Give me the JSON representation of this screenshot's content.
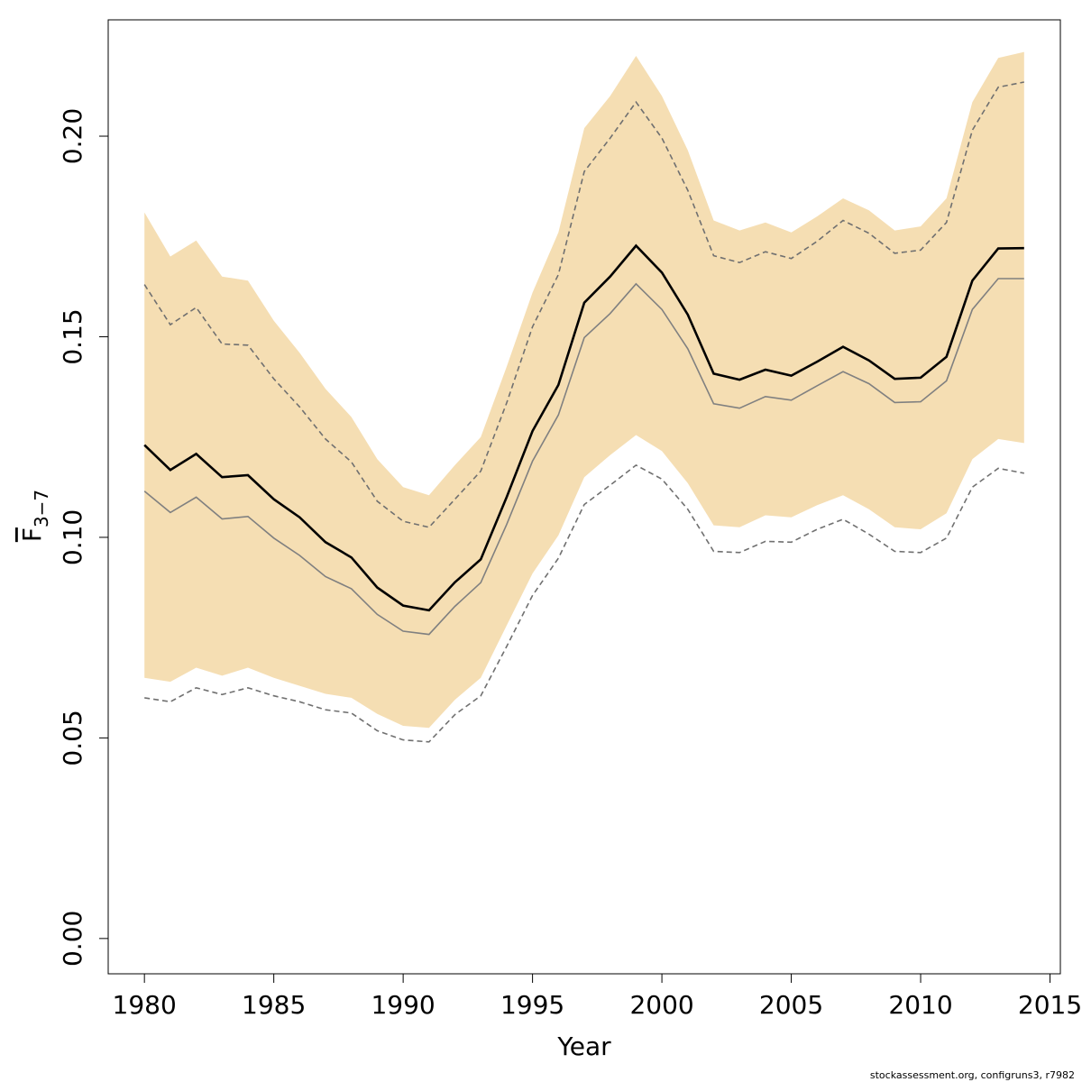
{
  "chart_data": {
    "type": "line",
    "title": "",
    "xlabel": "Year",
    "ylabel_main": "F",
    "ylabel_sub": "3−7",
    "xlim": [
      1978.6,
      2015.4
    ],
    "ylim": [
      -0.0088,
      0.229
    ],
    "xticks": [
      1980,
      1985,
      1990,
      1995,
      2000,
      2005,
      2010,
      2015
    ],
    "yticks": [
      0.0,
      0.05,
      0.1,
      0.15,
      0.2
    ],
    "xtick_labels": [
      "1980",
      "1985",
      "1990",
      "1995",
      "2000",
      "2005",
      "2010",
      "2015"
    ],
    "ytick_labels": [
      "0.00",
      "0.05",
      "0.10",
      "0.15",
      "0.20"
    ],
    "years": [
      1980,
      1981,
      1982,
      1983,
      1984,
      1985,
      1986,
      1987,
      1988,
      1989,
      1990,
      1991,
      1992,
      1993,
      1994,
      1995,
      1996,
      1997,
      1998,
      1999,
      2000,
      2001,
      2002,
      2003,
      2004,
      2005,
      2006,
      2007,
      2008,
      2009,
      2010,
      2011,
      2012,
      2013,
      2014
    ],
    "band_upper": [
      0.181,
      0.17,
      0.174,
      0.165,
      0.164,
      0.154,
      0.146,
      0.137,
      0.13,
      0.1195,
      0.1125,
      0.1105,
      0.118,
      0.125,
      0.1425,
      0.161,
      0.176,
      0.202,
      0.21,
      0.22,
      0.21,
      0.1965,
      0.179,
      0.1765,
      0.1785,
      0.176,
      0.18,
      0.1845,
      0.1815,
      0.1765,
      0.1775,
      0.1845,
      0.2085,
      0.2195,
      0.221
    ],
    "band_lower": [
      0.065,
      0.064,
      0.0675,
      0.0655,
      0.0675,
      0.065,
      0.063,
      0.061,
      0.06,
      0.056,
      0.053,
      0.0525,
      0.0595,
      0.065,
      0.078,
      0.091,
      0.1005,
      0.115,
      0.1205,
      0.1255,
      0.1215,
      0.1135,
      0.103,
      0.1025,
      0.1055,
      0.105,
      0.108,
      0.1105,
      0.107,
      0.1025,
      0.102,
      0.106,
      0.1195,
      0.1245,
      0.1235
    ],
    "series": [
      {
        "name": "estimate",
        "style": "solid-black",
        "color": "#000000",
        "values": [
          0.123,
          0.1168,
          0.1208,
          0.115,
          0.1155,
          0.1095,
          0.105,
          0.0988,
          0.095,
          0.0875,
          0.083,
          0.0818,
          0.0888,
          0.0945,
          0.11,
          0.1265,
          0.138,
          0.1585,
          0.165,
          0.1727,
          0.166,
          0.1555,
          0.1408,
          0.1393,
          0.1418,
          0.1403,
          0.1438,
          0.1475,
          0.1441,
          0.1395,
          0.1398,
          0.145,
          0.164,
          0.172,
          0.1721
        ]
      },
      {
        "name": "comparison",
        "style": "solid-grey",
        "color": "#808080",
        "values": [
          0.1115,
          0.1062,
          0.11,
          0.1046,
          0.1052,
          0.0998,
          0.0955,
          0.0902,
          0.0872,
          0.0808,
          0.0766,
          0.0758,
          0.0828,
          0.0887,
          0.1032,
          0.119,
          0.1305,
          0.1498,
          0.1558,
          0.1632,
          0.1568,
          0.147,
          0.1333,
          0.1322,
          0.1351,
          0.1342,
          0.1378,
          0.1413,
          0.1383,
          0.1336,
          0.1338,
          0.139,
          0.1568,
          0.1645,
          0.1645
        ]
      },
      {
        "name": "comparison-upper",
        "style": "dashed-grey",
        "color": "#707070",
        "values": [
          0.163,
          0.153,
          0.1573,
          0.1482,
          0.1479,
          0.1395,
          0.1325,
          0.1245,
          0.1188,
          0.109,
          0.104,
          0.1025,
          0.1095,
          0.1165,
          0.1335,
          0.1525,
          0.1655,
          0.1912,
          0.1995,
          0.2085,
          0.1995,
          0.1865,
          0.1702,
          0.1685,
          0.1712,
          0.1695,
          0.1738,
          0.179,
          0.1758,
          0.1708,
          0.1716,
          0.1785,
          0.2015,
          0.2122,
          0.2135
        ]
      },
      {
        "name": "comparison-lower",
        "style": "dashed-grey",
        "color": "#707070",
        "values": [
          0.06,
          0.059,
          0.0625,
          0.0608,
          0.0625,
          0.0605,
          0.059,
          0.057,
          0.0562,
          0.0518,
          0.0495,
          0.049,
          0.0558,
          0.0605,
          0.0728,
          0.0855,
          0.0948,
          0.1082,
          0.113,
          0.118,
          0.1145,
          0.107,
          0.0965,
          0.0962,
          0.099,
          0.0988,
          0.102,
          0.1045,
          0.1008,
          0.0965,
          0.0962,
          0.0998,
          0.1125,
          0.1172,
          0.116
        ]
      }
    ],
    "band_color": "#f5deb3",
    "legend": "none",
    "grid": false
  },
  "footer": {
    "text": "stockassessment.org, configruns3, r7982"
  }
}
